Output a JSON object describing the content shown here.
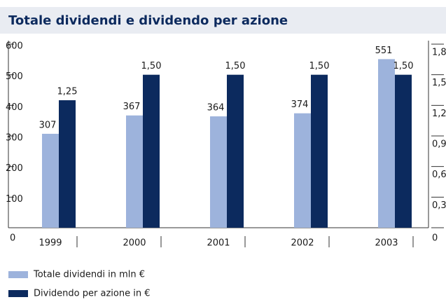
{
  "chart_data": {
    "type": "bar",
    "title": "Totale dividendi e dividendo per azione",
    "categories": [
      "1999",
      "2000",
      "2001",
      "2002",
      "2003"
    ],
    "series": [
      {
        "name": "Totale dividendi in mln €",
        "color": "#9db3dc",
        "values": [
          307,
          367,
          364,
          374,
          551
        ]
      },
      {
        "name": "Dividendo per azione in €",
        "color": "#0c2a5e",
        "axis": "y2",
        "values": [
          1.25,
          1.5,
          1.5,
          1.5,
          1.5
        ],
        "value_labels": [
          "1,25",
          "1,50",
          "1,50",
          "1,50",
          "1,50"
        ]
      }
    ],
    "ylim": [
      0,
      600
    ],
    "yticks": [
      0,
      100,
      200,
      300,
      400,
      500,
      600
    ],
    "y2lim": [
      0,
      1.8
    ],
    "y2ticks": [
      0,
      {
        "value": 0.3,
        "label": "0,3"
      },
      {
        "value": 0.6,
        "label": "0,6"
      },
      {
        "value": 0.9,
        "label": "0,9"
      },
      {
        "value": 1.2,
        "label": "1,2"
      },
      {
        "value": 1.5,
        "label": "1,5"
      },
      {
        "value": 1.8,
        "label": "1,8"
      }
    ]
  }
}
